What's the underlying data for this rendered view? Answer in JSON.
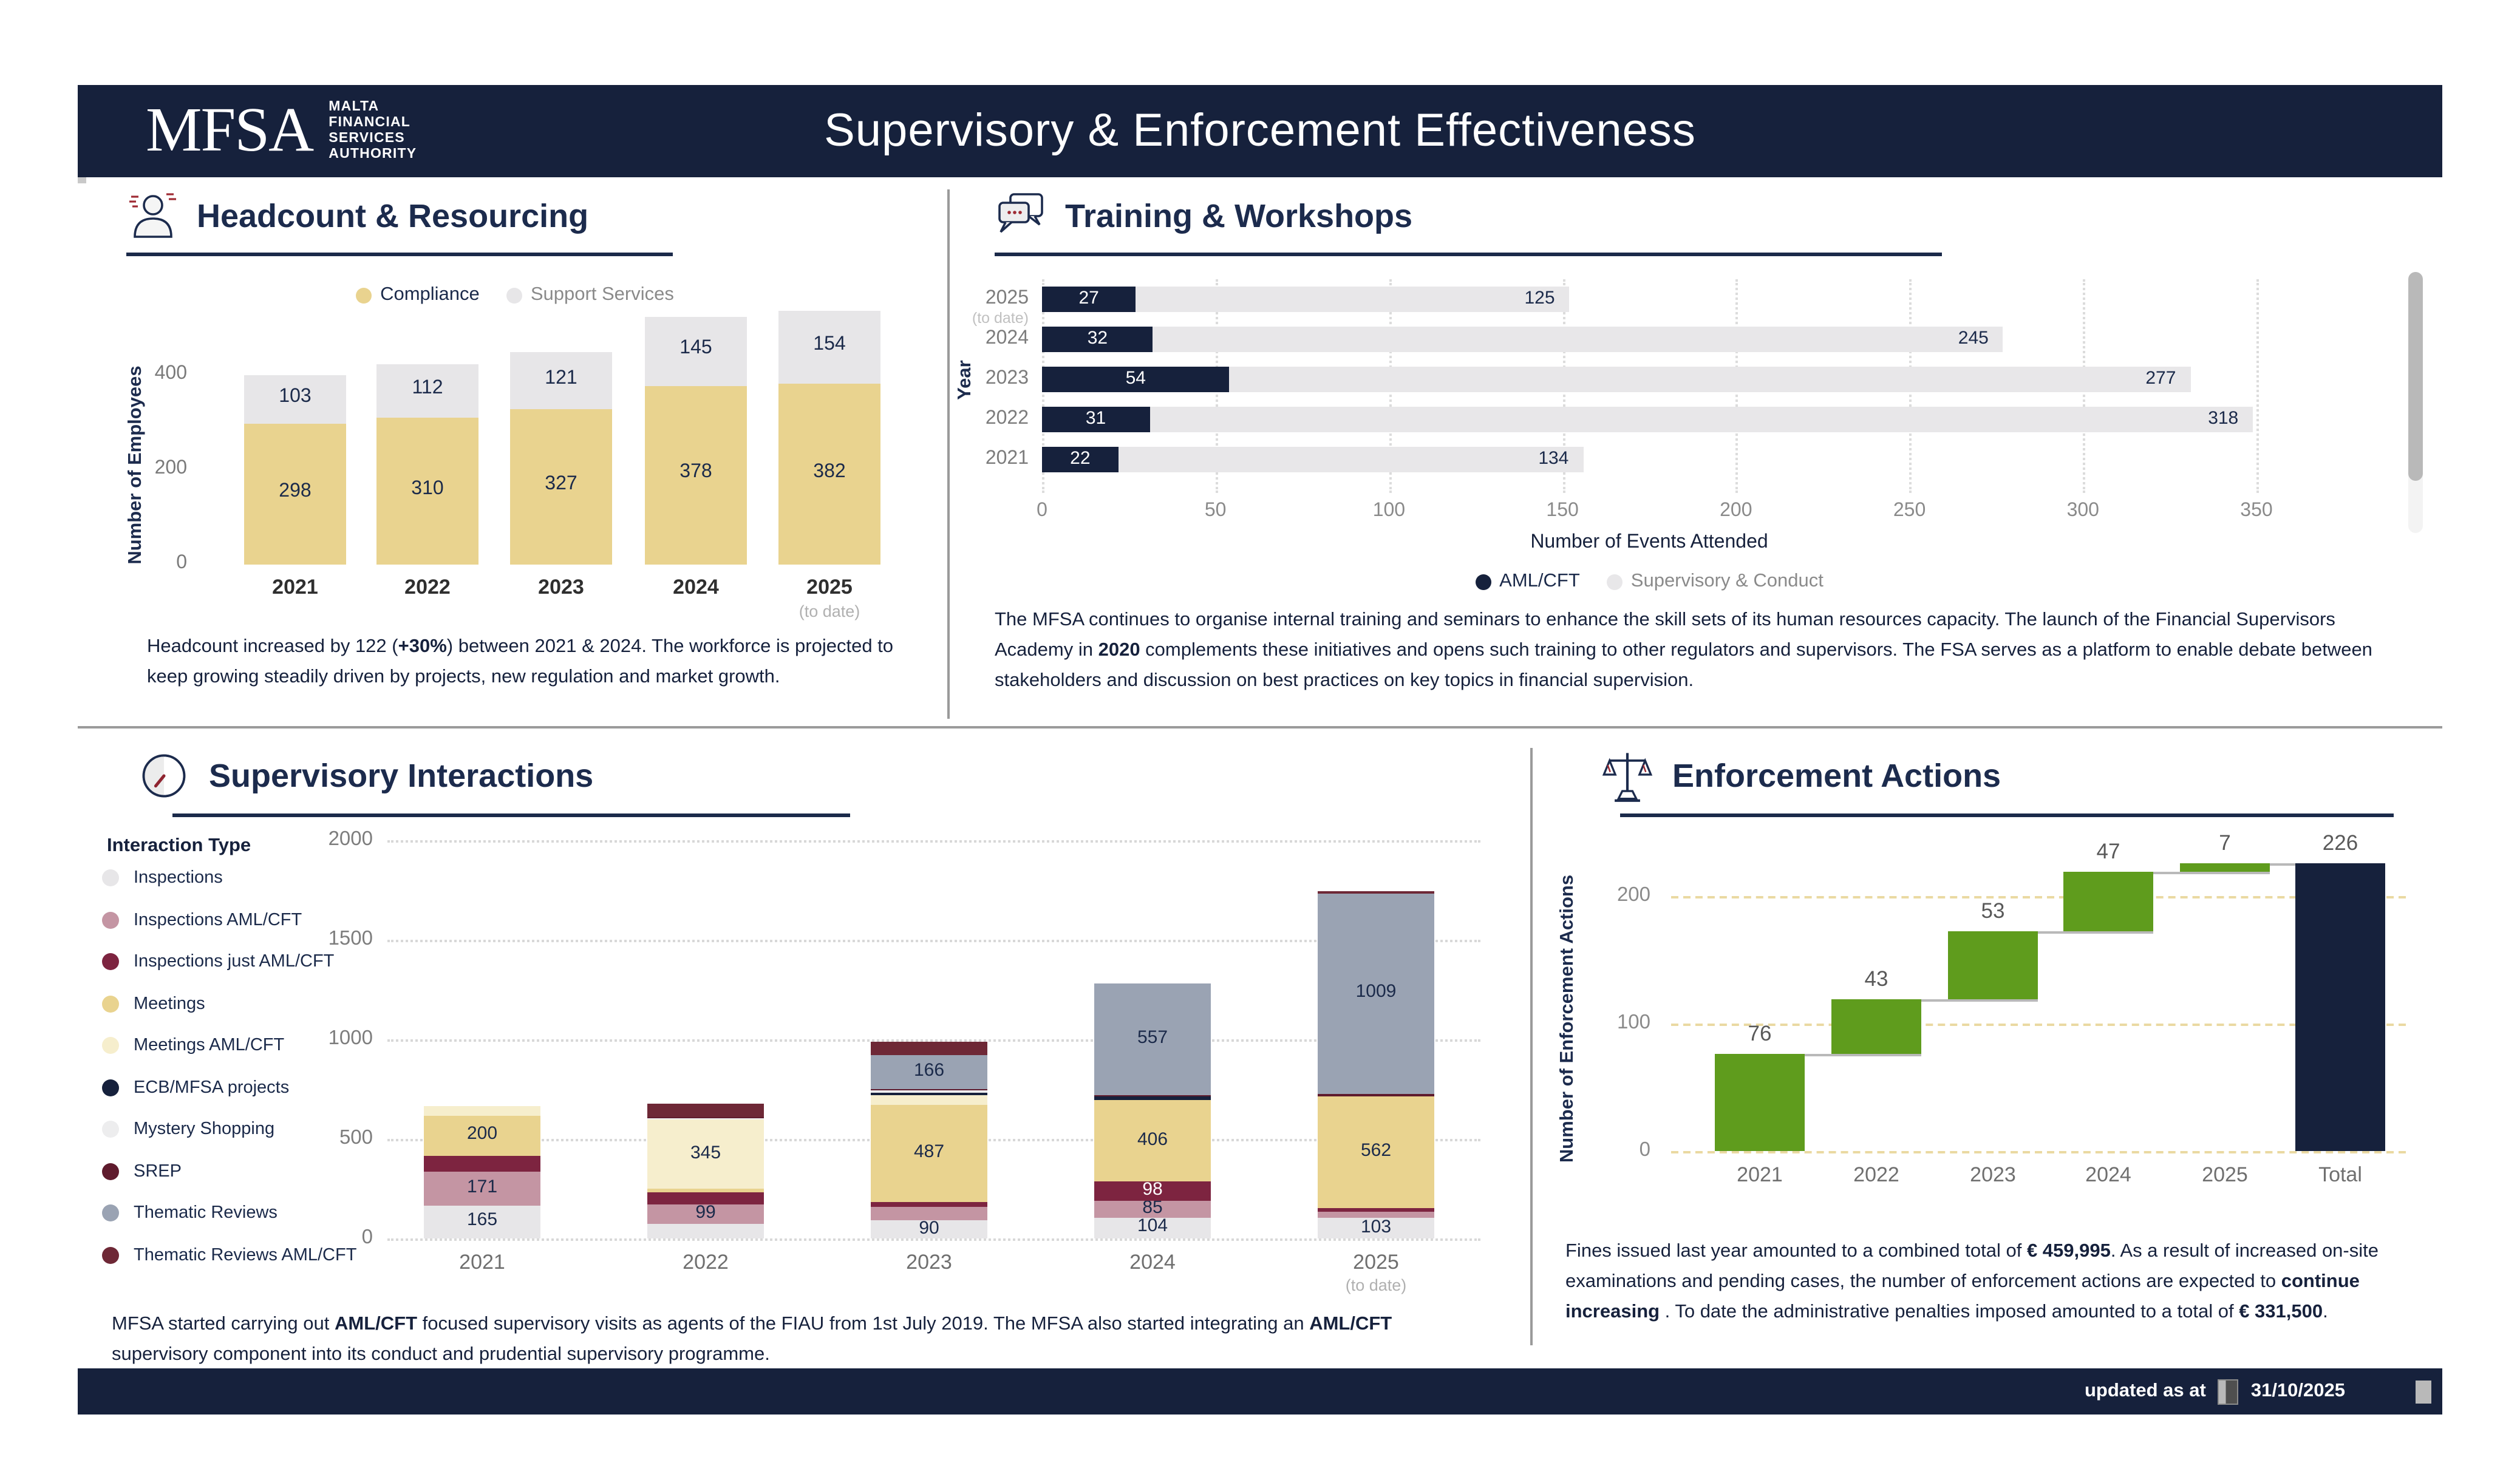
{
  "header": {
    "logo": {
      "acronym": "MFSA",
      "org_lines": [
        "MALTA",
        "FINANCIAL",
        "SERVICES",
        "AUTHORITY"
      ]
    },
    "title": "Supervisory & Enforcement Effectiveness"
  },
  "footer": {
    "updated_label": "updated as at",
    "updated_date": "31/10/2025"
  },
  "colors": {
    "navy": "#16213c",
    "panel_title": "#1c2b4d",
    "gold": "#e9d38f",
    "support_gray": "#e7e6e8",
    "cream": "#f6eecd",
    "pink": "#c495a3",
    "maroon": "#7d2440",
    "srep": "#5f1b2d",
    "thematic_aml": "#6e2836",
    "gray_blue": "#9aa3b3",
    "mystery": "#ededee",
    "green": "#5f9c1d",
    "waterfall_grid": "#ead9a2",
    "axis_gray": "#8a8a8a"
  },
  "panels": {
    "headcount": {
      "title": "Headcount & Resourcing",
      "note": [
        {
          "t": "Headcount increased by 122 ("
        },
        {
          "t": "+30%",
          "b": true
        },
        {
          "t": ") between 2021 & 2024. The workforce is projected to keep growing steadily driven by projects, new regulation and market growth."
        }
      ]
    },
    "training": {
      "title": "Training & Workshops",
      "note": [
        {
          "t": "The MFSA continues to organise internal training and seminars to enhance the skill sets of its human resources capacity. The launch of the Financial Supervisors Academy in "
        },
        {
          "t": "2020",
          "b": true
        },
        {
          "t": " complements these initiatives and opens such training to other regulators and supervisors. The FSA serves as a platform to enable debate between stakeholders and discussion on best practices on key topics in financial supervision."
        }
      ]
    },
    "interactions": {
      "title": "Supervisory Interactions",
      "legend_title": "Interaction Type",
      "note": [
        {
          "t": "MFSA started carrying out "
        },
        {
          "t": "AML/CFT",
          "b": true
        },
        {
          "t": " focused supervisory visits as agents of the FIAU from 1st July 2019. The MFSA also started integrating an "
        },
        {
          "t": "AML/CFT",
          "b": true
        },
        {
          "t": " supervisory component into its conduct and prudential supervisory programme."
        }
      ]
    },
    "enforcement": {
      "title": "Enforcement Actions",
      "note": [
        {
          "t": "Fines issued last year amounted to a combined total of "
        },
        {
          "t": "€ 459,995",
          "b": true
        },
        {
          "t": ". As a result of increased on-site examinations and pending cases, the number of enforcement actions are expected to "
        },
        {
          "t": "continue increasing",
          "b": true
        },
        {
          "t": " . To date the administrative penalties imposed amounted to a total of "
        },
        {
          "t": "€ 331,500",
          "b": true
        },
        {
          "t": "."
        }
      ]
    }
  },
  "chart_data": [
    {
      "id": "headcount",
      "type": "bar",
      "stacked": true,
      "title": "Headcount & Resourcing",
      "categories": [
        "2021",
        "2022",
        "2023",
        "2024",
        "2025"
      ],
      "category_suffixes": [
        null,
        null,
        null,
        null,
        "(to date)"
      ],
      "series": [
        {
          "name": "Compliance",
          "color": "#e9d38f",
          "label_color": "#1b2a4a",
          "values": [
            298,
            310,
            327,
            378,
            382
          ],
          "labels": [
            298,
            310,
            327,
            378,
            382
          ]
        },
        {
          "name": "Support Services",
          "color": "#e7e6e8",
          "label_color": "#1b2a4a",
          "values": [
            103,
            112,
            121,
            145,
            154
          ],
          "labels": [
            103,
            112,
            121,
            145,
            154
          ]
        }
      ],
      "ylabel": "Number of Employees",
      "yticks": [
        0,
        200,
        400
      ],
      "ylim": [
        0,
        540
      ],
      "grid": false,
      "legend_position": "top"
    },
    {
      "id": "training",
      "type": "bar",
      "orientation": "horizontal",
      "stacked": true,
      "title": "Training & Workshops",
      "categories": [
        "2025",
        "2024",
        "2023",
        "2022",
        "2021"
      ],
      "category_suffixes": [
        "(to date)",
        null,
        null,
        null,
        null
      ],
      "series": [
        {
          "name": "AML/CFT",
          "color": "#16213c",
          "label_color": "#ffffff",
          "values": [
            27,
            32,
            54,
            31,
            22
          ],
          "labels": [
            27,
            32,
            54,
            31,
            22
          ]
        },
        {
          "name": "Supervisory & Conduct",
          "color": "#e8e7e9",
          "label_color": "#1b2a4a",
          "values": [
            125,
            245,
            277,
            318,
            134
          ],
          "labels": [
            125,
            245,
            277,
            318,
            134
          ]
        }
      ],
      "xlabel": "Number of Events Attended",
      "ylabel": "Year",
      "xticks": [
        0,
        50,
        100,
        150,
        200,
        250,
        300,
        350
      ],
      "xlim": [
        0,
        350
      ],
      "grid": true,
      "legend_position": "bottom"
    },
    {
      "id": "interactions",
      "type": "bar",
      "stacked": true,
      "title": "Supervisory Interactions",
      "legend_title": "Interaction Type",
      "categories": [
        "2021",
        "2022",
        "2023",
        "2024",
        "2025"
      ],
      "category_suffixes": [
        null,
        null,
        null,
        null,
        "(to date)"
      ],
      "series": [
        {
          "name": "Inspections",
          "color": "#e7e6e8",
          "label_color": "#1b2a4a",
          "values": [
            165,
            72,
            90,
            104,
            103
          ],
          "labels": [
            165,
            null,
            90,
            104,
            103
          ]
        },
        {
          "name": "Inspections  AML/CFT",
          "color": "#c495a3",
          "label_color": "#1b2a4a",
          "values": [
            171,
            99,
            68,
            85,
            33
          ],
          "labels": [
            171,
            99,
            null,
            85,
            null
          ]
        },
        {
          "name": "Inspections just AML/CFT",
          "color": "#7d2440",
          "label_color": "#ffffff",
          "values": [
            80,
            62,
            26,
            98,
            17
          ],
          "labels": [
            null,
            null,
            null,
            98,
            null
          ]
        },
        {
          "name": "Meetings",
          "color": "#e9d38f",
          "label_color": "#1b2a4a",
          "values": [
            200,
            18,
            487,
            406,
            562
          ],
          "labels": [
            200,
            null,
            487,
            406,
            562
          ]
        },
        {
          "name": "Meetings  AML/CFT",
          "color": "#f6eecd",
          "label_color": "#1b2a4a",
          "values": [
            48,
            345,
            46,
            0,
            0
          ],
          "labels": [
            null,
            345,
            null,
            null,
            null
          ]
        },
        {
          "name": "ECB/MFSA projects",
          "color": "#16213c",
          "label_color": "#ffffff",
          "values": [
            0,
            0,
            16,
            20,
            0
          ],
          "labels": [
            null,
            null,
            null,
            null,
            null
          ]
        },
        {
          "name": "Mystery Shopping",
          "color": "#ededee",
          "label_color": "#1b2a4a",
          "values": [
            0,
            8,
            9,
            0,
            0
          ],
          "labels": [
            null,
            null,
            null,
            null,
            null
          ]
        },
        {
          "name": "SREP",
          "color": "#5f1b2d",
          "label_color": "#ffffff",
          "values": [
            0,
            4,
            10,
            8,
            10
          ],
          "labels": [
            null,
            null,
            null,
            null,
            null
          ]
        },
        {
          "name": "Thematic Reviews",
          "color": "#9aa3b3",
          "label_color": "#1b2a4a",
          "values": [
            0,
            0,
            166,
            557,
            1009
          ],
          "labels": [
            null,
            null,
            166,
            557,
            1009
          ]
        },
        {
          "name": "Thematic Reviews   AML/CFT",
          "color": "#6e2836",
          "label_color": "#ffffff",
          "values": [
            0,
            72,
            68,
            0,
            10
          ],
          "labels": [
            null,
            null,
            null,
            null,
            null
          ]
        }
      ],
      "yticks": [
        0,
        500,
        1000,
        1500,
        2000
      ],
      "ylim": [
        0,
        2000
      ],
      "grid": true
    },
    {
      "id": "enforcement",
      "type": "waterfall",
      "title": "Enforcement Actions",
      "categories": [
        "2021",
        "2022",
        "2023",
        "2024",
        "2025",
        "Total"
      ],
      "values": [
        76,
        43,
        53,
        47,
        7,
        226
      ],
      "is_total": [
        false,
        false,
        false,
        false,
        false,
        true
      ],
      "bar_color": "#5f9c1d",
      "total_color": "#16213c",
      "ylabel": "Number of Enforcement Actions",
      "yticks": [
        0,
        100,
        200
      ],
      "ylim": [
        0,
        240
      ],
      "grid": true
    }
  ]
}
